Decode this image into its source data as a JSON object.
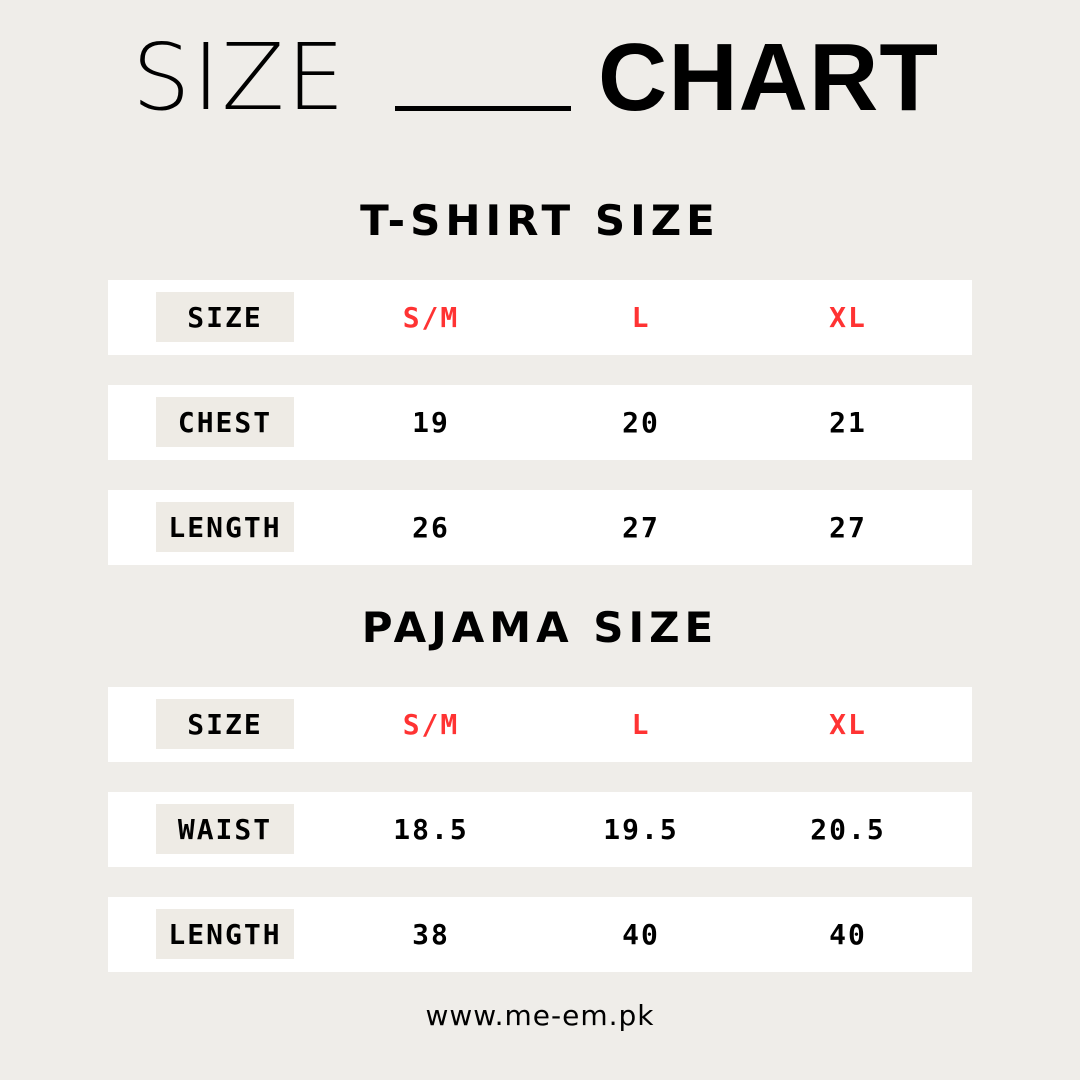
{
  "title": {
    "thin": "SIZE",
    "bold": "CHART"
  },
  "accent_color": "#ff3333",
  "tshirt": {
    "heading": "T-SHIRT SIZE",
    "rows": [
      {
        "label": "SIZE",
        "values": [
          "S/M",
          "L",
          "XL"
        ]
      },
      {
        "label": "CHEST",
        "values": [
          "19",
          "20",
          "21"
        ]
      },
      {
        "label": "LENGTH",
        "values": [
          "26",
          "27",
          "27"
        ]
      }
    ]
  },
  "pajama": {
    "heading": "PAJAMA SIZE",
    "rows": [
      {
        "label": "SIZE",
        "values": [
          "S/M",
          "L",
          "XL"
        ]
      },
      {
        "label": "WAIST",
        "values": [
          "18.5",
          "19.5",
          "20.5"
        ]
      },
      {
        "label": "LENGTH",
        "values": [
          "38",
          "40",
          "40"
        ]
      }
    ]
  },
  "footer": {
    "website": "www.me-em.pk"
  }
}
